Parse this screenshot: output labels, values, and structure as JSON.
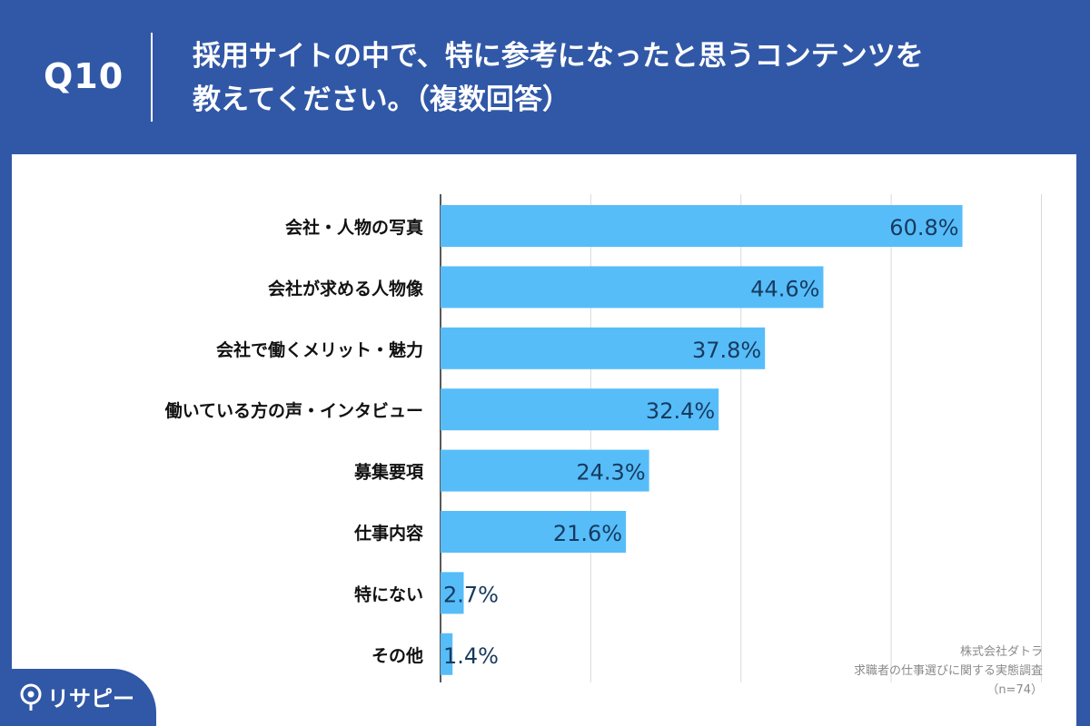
{
  "header": {
    "question_number": "Q10",
    "title_line1": "採用サイトの中で、特に参考になったと思うコンテンツを",
    "title_line2": "教えてください。（複数回答）"
  },
  "chart_data": {
    "type": "bar",
    "orientation": "horizontal",
    "categories": [
      "会社・人物の写真",
      "会社が求める人物像",
      "会社で働くメリット・魅力",
      "働いている方の声・インタビュー",
      "募集要項",
      "仕事内容",
      "特にない",
      "その他"
    ],
    "values": [
      60.8,
      44.6,
      37.8,
      32.4,
      24.3,
      21.6,
      2.7,
      1.4
    ],
    "value_labels": [
      "60.8%",
      "44.6%",
      "37.8%",
      "32.4%",
      "24.3%",
      "21.6%",
      "2.7%",
      "1.4%"
    ],
    "xlim": [
      0,
      70
    ],
    "grid": true,
    "bar_color": "#56bdf9",
    "label_color": "#173a5e"
  },
  "source": {
    "company": "株式会社ダトラ",
    "survey": "求職者の仕事選びに関する実態調査",
    "sample": "（n=74）"
  },
  "logo": {
    "text": "リサピー"
  },
  "colors": {
    "background": "#3158a7",
    "panel": "#ffffff"
  }
}
